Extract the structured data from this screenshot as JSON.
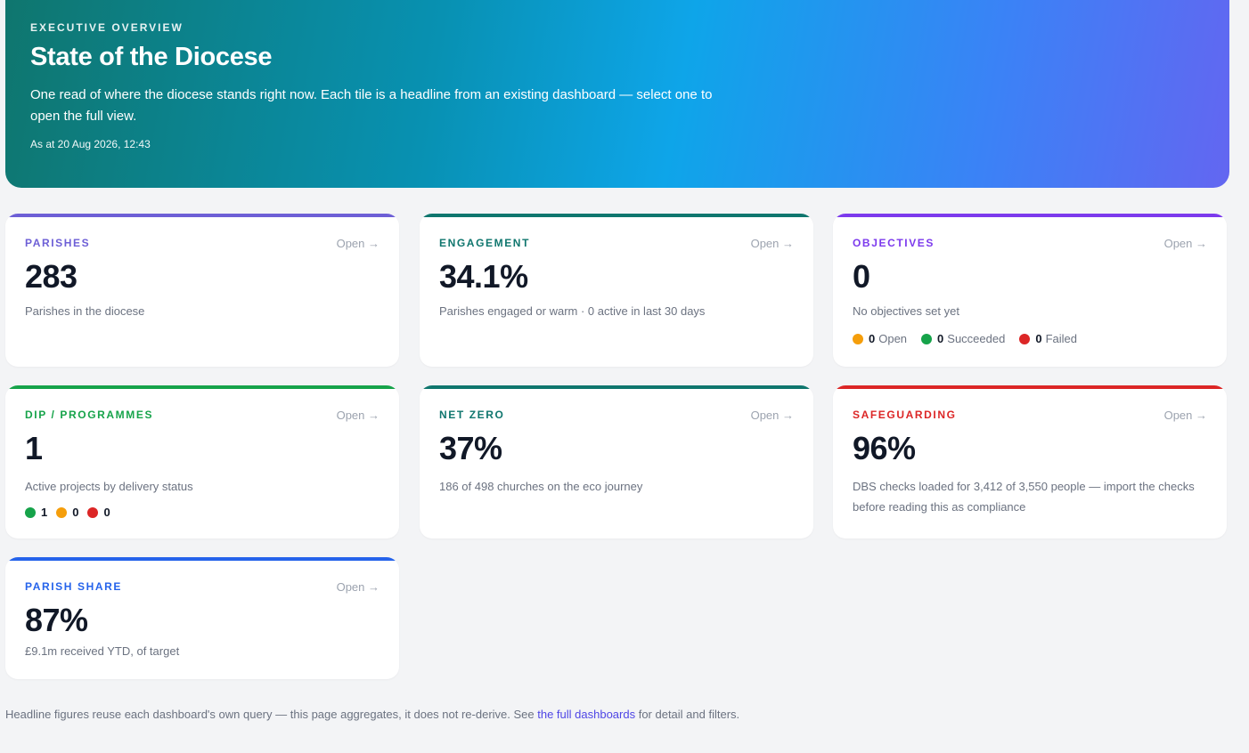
{
  "hero": {
    "eyebrow": "EXECUTIVE OVERVIEW",
    "title": "State of the Diocese",
    "description": "One read of where the diocese stands right now. Each tile is a headline from an existing dashboard — select one to open the full view.",
    "as_at": "As at 20 Aug 2026, 12:43"
  },
  "open_label": "Open →",
  "colors": {
    "parishes": "#6d5fd6",
    "engagement": "#0f766e",
    "objectives": "#7c3aed",
    "dip": "#16a34a",
    "netzero": "#0f766e",
    "safeguarding": "#dc2626",
    "parish_share": "#2563eb",
    "dot_green": "#16a34a",
    "dot_amber": "#f59e0b",
    "dot_red": "#dc2626"
  },
  "cards": {
    "parishes": {
      "label": "PARISHES",
      "value": "283",
      "sub": "Parishes in the diocese"
    },
    "engagement": {
      "label": "ENGAGEMENT",
      "value": "34.1%",
      "sub": "Parishes engaged or warm · 0 active in last 30 days"
    },
    "objectives": {
      "label": "OBJECTIVES",
      "value": "0",
      "sub": "No objectives set yet",
      "legend": {
        "open_count": "0",
        "open_label": "Open",
        "succeeded_count": "0",
        "succeeded_label": "Succeeded",
        "failed_count": "0",
        "failed_label": "Failed"
      }
    },
    "dip": {
      "label": "DIP / PROGRAMMES",
      "value": "1",
      "sub": "Active projects by delivery status",
      "legend": {
        "green": "1",
        "amber": "0",
        "red": "0"
      }
    },
    "netzero": {
      "label": "NET ZERO",
      "value": "37%",
      "sub": "186 of 498 churches on the eco journey"
    },
    "safeguarding": {
      "label": "SAFEGUARDING",
      "value": "96%",
      "sub": "DBS checks loaded for 3,412 of 3,550 people — import the checks before reading this as compliance"
    },
    "parish_share": {
      "label": "PARISH SHARE",
      "value": "87%",
      "sub": "£9.1m received YTD, of target"
    }
  },
  "footer": {
    "text_before": "Headline figures reuse each dashboard's own query — this page aggregates, it does not re-derive. See ",
    "link": "the full dashboards",
    "text_after": " for detail and filters."
  }
}
